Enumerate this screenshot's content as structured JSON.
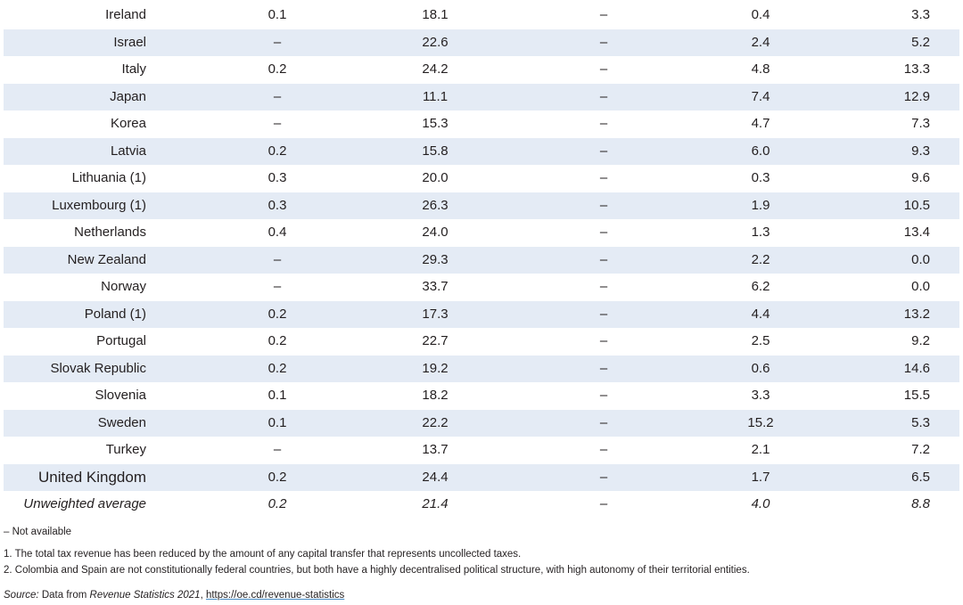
{
  "table": {
    "rows": [
      [
        "Ireland",
        "0.1",
        "18.1",
        "–",
        "0.4",
        "3.3"
      ],
      [
        "Israel",
        "–",
        "22.6",
        "–",
        "2.4",
        "5.2"
      ],
      [
        "Italy",
        "0.2",
        "24.2",
        "–",
        "4.8",
        "13.3"
      ],
      [
        "Japan",
        "–",
        "11.1",
        "–",
        "7.4",
        "12.9"
      ],
      [
        "Korea",
        "–",
        "15.3",
        "–",
        "4.7",
        "7.3"
      ],
      [
        "Latvia",
        "0.2",
        "15.8",
        "–",
        "6.0",
        "9.3"
      ],
      [
        "Lithuania (1)",
        "0.3",
        "20.0",
        "–",
        "0.3",
        "9.6"
      ],
      [
        "Luxembourg (1)",
        "0.3",
        "26.3",
        "–",
        "1.9",
        "10.5"
      ],
      [
        "Netherlands",
        "0.4",
        "24.0",
        "–",
        "1.3",
        "13.4"
      ],
      [
        "New Zealand",
        "–",
        "29.3",
        "–",
        "2.2",
        "0.0"
      ],
      [
        "Norway",
        "–",
        "33.7",
        "–",
        "6.2",
        "0.0"
      ],
      [
        "Poland (1)",
        "0.2",
        "17.3",
        "–",
        "4.4",
        "13.2"
      ],
      [
        "Portugal",
        "0.2",
        "22.7",
        "–",
        "2.5",
        "9.2"
      ],
      [
        "Slovak Republic",
        "0.2",
        "19.2",
        "–",
        "0.6",
        "14.6"
      ],
      [
        "Slovenia",
        "0.1",
        "18.2",
        "–",
        "3.3",
        "15.5"
      ],
      [
        "Sweden",
        "0.1",
        "22.2",
        "–",
        "15.2",
        "5.3"
      ],
      [
        "Turkey",
        "–",
        "13.7",
        "–",
        "2.1",
        "7.2"
      ],
      [
        "United Kingdom",
        "0.2",
        "24.4",
        "–",
        "1.7",
        "6.5"
      ]
    ],
    "average": [
      "Unweighted average",
      "0.2",
      "21.4",
      "–",
      "4.0",
      "8.8"
    ]
  },
  "notes": {
    "not_available": "– Not available",
    "items": [
      "1. The total tax revenue has been reduced by the amount of any capital transfer that represents uncollected taxes.",
      "2. Colombia and Spain are not constitutionally federal countries, but both have a highly decentralised political structure, with high autonomy of their territorial entities."
    ],
    "source": {
      "label": "Source:",
      "text1": " Data from ",
      "publication": "Revenue Statistics 2021",
      "text2": ", ",
      "link": "https://oe.cd/revenue-statistics"
    }
  }
}
